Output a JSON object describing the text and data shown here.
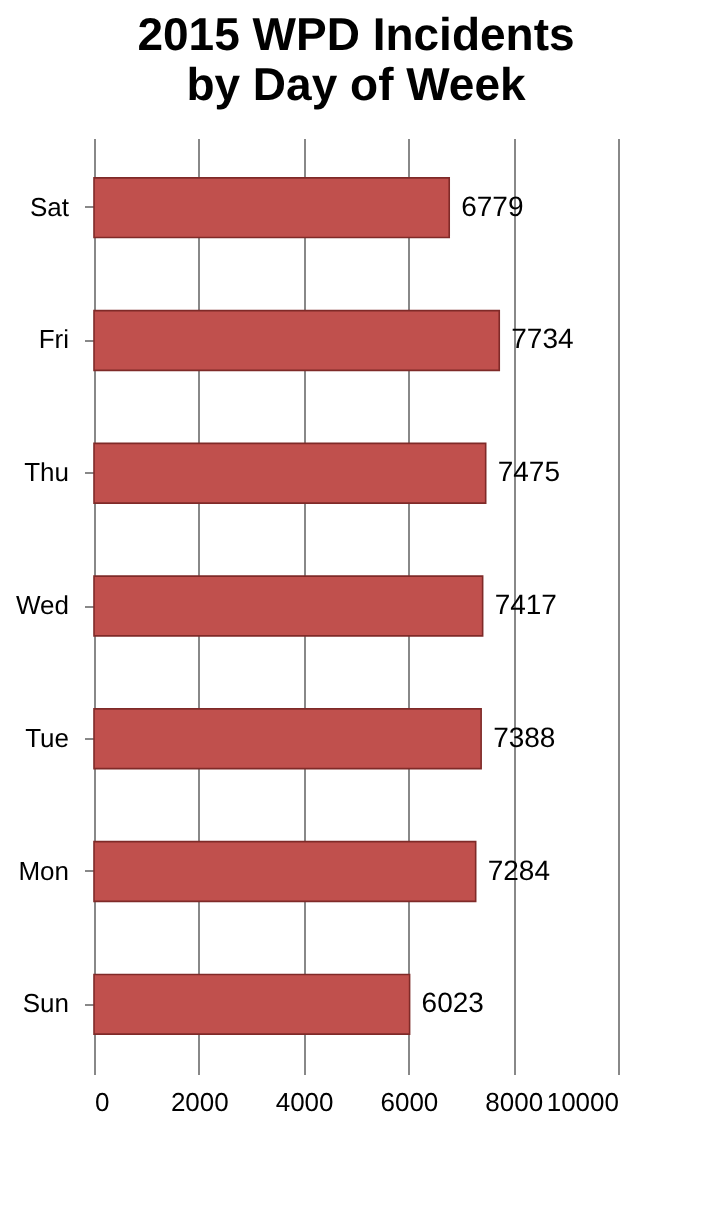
{
  "chart_data": {
    "type": "bar",
    "orientation": "horizontal",
    "title": "2015 WPD Incidents by Day of Week",
    "categories": [
      "Sat",
      "Fri",
      "Thu",
      "Wed",
      "Tue",
      "Mon",
      "Sun"
    ],
    "values": [
      6779,
      7734,
      7475,
      7417,
      7388,
      7284,
      6023
    ],
    "color": "#c0504d",
    "data_labels": true,
    "grid": "x",
    "xlim": [
      0,
      10000
    ],
    "xticks": [
      0,
      2000,
      4000,
      6000,
      8000,
      10000
    ]
  }
}
